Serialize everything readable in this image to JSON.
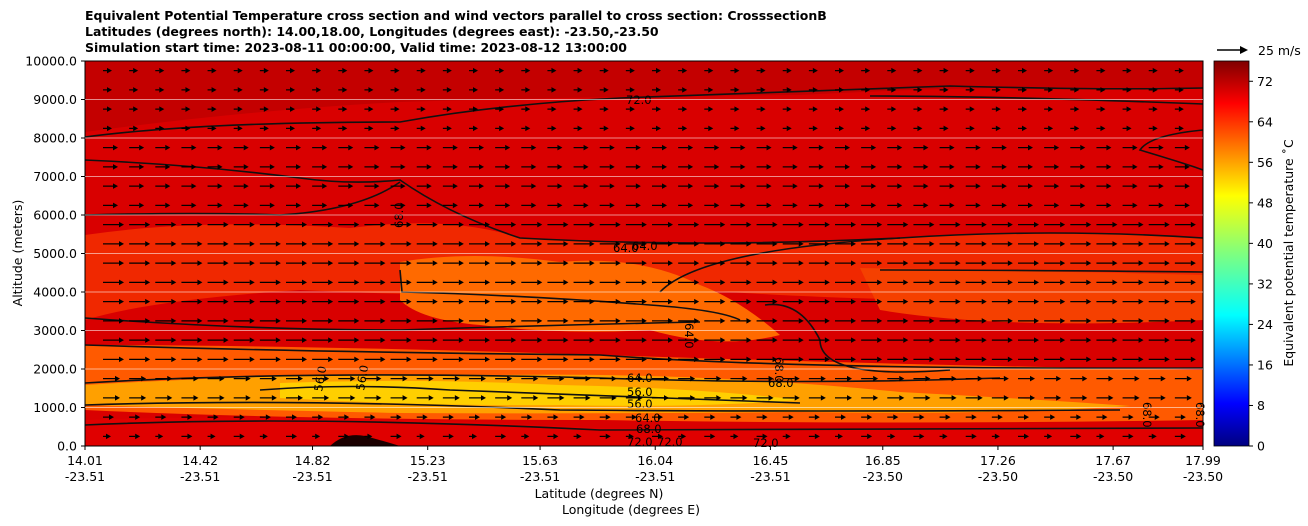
{
  "chart_data": {
    "type": "heatmap",
    "title_lines": [
      "Equivalent Potential Temperature cross section and wind vectors parallel to cross section: CrosssectionB",
      "Latitudes (degrees north): 14.00,18.00, Longitudes (degrees east): -23.50,-23.50",
      "Simulation start time: 2023-08-11 00:00:00, Valid time: 2023-08-12 13:00:00"
    ],
    "ylabel": "Altitude (meters)",
    "xlabel_lines": [
      "Latitude (degrees N)",
      "Longitude (degrees E)"
    ],
    "ylim": [
      0,
      10000
    ],
    "y_ticks": [
      "0.0",
      "1000.0",
      "2000.0",
      "3000.0",
      "4000.0",
      "5000.0",
      "6000.0",
      "7000.0",
      "8000.0",
      "9000.0",
      "10000.0"
    ],
    "y_tick_values": [
      0,
      1000,
      2000,
      3000,
      4000,
      5000,
      6000,
      7000,
      8000,
      9000,
      10000
    ],
    "x_ticks": [
      {
        "lat": "14.01",
        "lon": "-23.51"
      },
      {
        "lat": "14.42",
        "lon": "-23.51"
      },
      {
        "lat": "14.82",
        "lon": "-23.51"
      },
      {
        "lat": "15.23",
        "lon": "-23.51"
      },
      {
        "lat": "15.63",
        "lon": "-23.51"
      },
      {
        "lat": "16.04",
        "lon": "-23.51"
      },
      {
        "lat": "16.45",
        "lon": "-23.51"
      },
      {
        "lat": "16.85",
        "lon": "-23.50"
      },
      {
        "lat": "17.26",
        "lon": "-23.50"
      },
      {
        "lat": "17.67",
        "lon": "-23.50"
      },
      {
        "lat": "17.99",
        "lon": "-23.50"
      }
    ],
    "xlim": [
      14.01,
      17.99
    ],
    "colorbar": {
      "label": "Equivalent potential temperature $^\\circ$C",
      "label_text": "Equivalent potential temperature ˚C",
      "min": 0,
      "max": 76,
      "ticks": [
        "0",
        "8",
        "16",
        "24",
        "32",
        "40",
        "48",
        "56",
        "64",
        "72"
      ],
      "tick_values": [
        0,
        8,
        16,
        24,
        32,
        40,
        48,
        56,
        64,
        72
      ],
      "colormap": "jet"
    },
    "quiver_key": {
      "label": "25 m/s",
      "value": 25
    },
    "contour_labels": [
      "72.0",
      "68.0",
      "64.0",
      "64.0",
      "64.0",
      "68.0",
      "64.0",
      "56.0",
      "56.0",
      "64.0",
      "68.0",
      "72.0",
      "72.0",
      "72.0",
      "56.0",
      "56.0",
      "68.0",
      "68.0",
      "68.0"
    ],
    "field_description_levels": [
      {
        "alt": 9500,
        "theta": 75
      },
      {
        "alt": 8000,
        "theta": 72
      },
      {
        "alt": 6500,
        "theta": 70
      },
      {
        "alt": 5000,
        "theta": 66
      },
      {
        "alt": 3800,
        "theta": 64
      },
      {
        "alt": 2500,
        "theta": 67
      },
      {
        "alt": 1500,
        "theta": 60
      },
      {
        "alt": 1000,
        "theta": 56
      },
      {
        "alt": 500,
        "theta": 66
      },
      {
        "alt": 0,
        "theta": 73
      }
    ]
  }
}
